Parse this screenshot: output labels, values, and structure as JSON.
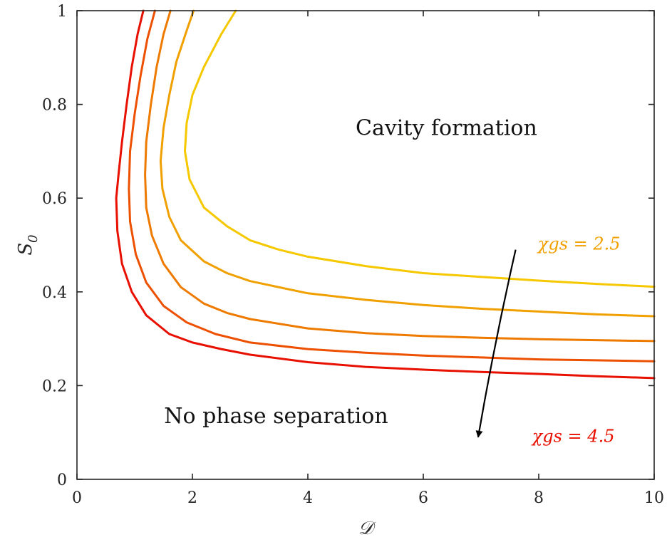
{
  "chart_data": {
    "type": "line",
    "title": "",
    "xlabel": "𝒟",
    "ylabel_main": "S",
    "ylabel_sub": "0",
    "xlim": [
      0,
      10
    ],
    "ylim": [
      0,
      1
    ],
    "xticks": [
      0,
      2,
      4,
      6,
      8,
      10
    ],
    "yticks": [
      0,
      0.2,
      0.4,
      0.6,
      0.8,
      1
    ],
    "xtick_labels": [
      "0",
      "2",
      "4",
      "6",
      "8",
      "10"
    ],
    "ytick_labels": [
      "0",
      "0.2",
      "0.4",
      "0.6",
      "0.8",
      "1"
    ],
    "grid": false,
    "legend": "none",
    "series": [
      {
        "color": "#F5C800",
        "points": [
          [
            2.75,
            1.0
          ],
          [
            2.5,
            0.95
          ],
          [
            2.2,
            0.88
          ],
          [
            2.0,
            0.82
          ],
          [
            1.9,
            0.76
          ],
          [
            1.87,
            0.7
          ],
          [
            1.95,
            0.64
          ],
          [
            2.2,
            0.58
          ],
          [
            2.6,
            0.54
          ],
          [
            3.0,
            0.51
          ],
          [
            3.5,
            0.49
          ],
          [
            4.0,
            0.475
          ],
          [
            5.0,
            0.455
          ],
          [
            6.0,
            0.44
          ],
          [
            7.0,
            0.432
          ],
          [
            8.0,
            0.424
          ],
          [
            9.0,
            0.417
          ],
          [
            10.0,
            0.411
          ]
        ]
      },
      {
        "color": "#F0A000",
        "points": [
          [
            2.02,
            1.0
          ],
          [
            1.88,
            0.95
          ],
          [
            1.72,
            0.89
          ],
          [
            1.6,
            0.82
          ],
          [
            1.5,
            0.75
          ],
          [
            1.45,
            0.68
          ],
          [
            1.48,
            0.62
          ],
          [
            1.6,
            0.56
          ],
          [
            1.8,
            0.51
          ],
          [
            2.2,
            0.465
          ],
          [
            2.6,
            0.44
          ],
          [
            3.0,
            0.423
          ],
          [
            4.0,
            0.397
          ],
          [
            5.0,
            0.383
          ],
          [
            6.0,
            0.372
          ],
          [
            7.0,
            0.364
          ],
          [
            8.0,
            0.358
          ],
          [
            9.0,
            0.352
          ],
          [
            10.0,
            0.348
          ]
        ]
      },
      {
        "color": "#EE7A00",
        "points": [
          [
            1.62,
            1.0
          ],
          [
            1.5,
            0.95
          ],
          [
            1.38,
            0.88
          ],
          [
            1.28,
            0.8
          ],
          [
            1.2,
            0.72
          ],
          [
            1.18,
            0.65
          ],
          [
            1.2,
            0.58
          ],
          [
            1.3,
            0.52
          ],
          [
            1.5,
            0.46
          ],
          [
            1.8,
            0.41
          ],
          [
            2.2,
            0.375
          ],
          [
            2.6,
            0.355
          ],
          [
            3.0,
            0.342
          ],
          [
            4.0,
            0.322
          ],
          [
            5.0,
            0.312
          ],
          [
            6.0,
            0.306
          ],
          [
            7.0,
            0.302
          ],
          [
            8.0,
            0.299
          ],
          [
            9.0,
            0.297
          ],
          [
            10.0,
            0.295
          ]
        ]
      },
      {
        "color": "#EC5000",
        "points": [
          [
            1.35,
            1.0
          ],
          [
            1.22,
            0.94
          ],
          [
            1.1,
            0.86
          ],
          [
            1.0,
            0.78
          ],
          [
            0.92,
            0.7
          ],
          [
            0.9,
            0.62
          ],
          [
            0.92,
            0.55
          ],
          [
            1.02,
            0.48
          ],
          [
            1.2,
            0.42
          ],
          [
            1.5,
            0.37
          ],
          [
            1.9,
            0.335
          ],
          [
            2.4,
            0.31
          ],
          [
            3.0,
            0.292
          ],
          [
            4.0,
            0.278
          ],
          [
            5.0,
            0.27
          ],
          [
            6.0,
            0.264
          ],
          [
            7.0,
            0.26
          ],
          [
            8.0,
            0.256
          ],
          [
            9.0,
            0.254
          ],
          [
            10.0,
            0.252
          ]
        ]
      },
      {
        "color": "#E81000",
        "points": [
          [
            1.15,
            1.0
          ],
          [
            1.05,
            0.95
          ],
          [
            0.95,
            0.88
          ],
          [
            0.86,
            0.8
          ],
          [
            0.78,
            0.72
          ],
          [
            0.72,
            0.65
          ],
          [
            0.68,
            0.6
          ],
          [
            0.7,
            0.53
          ],
          [
            0.78,
            0.46
          ],
          [
            0.95,
            0.4
          ],
          [
            1.2,
            0.35
          ],
          [
            1.6,
            0.31
          ],
          [
            2.0,
            0.292
          ],
          [
            2.5,
            0.278
          ],
          [
            3.0,
            0.266
          ],
          [
            4.0,
            0.25
          ],
          [
            5.0,
            0.24
          ],
          [
            6.0,
            0.234
          ],
          [
            7.0,
            0.229
          ],
          [
            8.0,
            0.225
          ],
          [
            9.0,
            0.22
          ],
          [
            10.0,
            0.216
          ]
        ]
      }
    ],
    "annotations": {
      "cavity": {
        "text": "Cavity formation",
        "x": 6.4,
        "y": 0.735
      },
      "nophase": {
        "text": "No phase separation",
        "x": 3.45,
        "y": 0.12
      },
      "chi_low": {
        "text": "χgs = 2.5",
        "x": 8.7,
        "y": 0.49,
        "color": "#F0A000"
      },
      "chi_high": {
        "text": "χgs = 4.5",
        "x": 8.6,
        "y": 0.08,
        "color": "#E81000"
      },
      "arrow": {
        "from": [
          7.6,
          0.49
        ],
        "to": [
          6.95,
          0.09
        ]
      }
    }
  }
}
